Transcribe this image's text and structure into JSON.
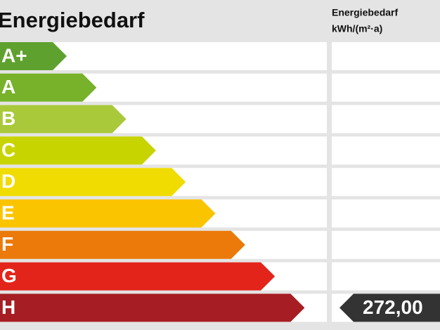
{
  "header": {
    "title": "Energiebedarf",
    "unit_title": "Energiebedarf",
    "unit": "kWh/(m²·a)"
  },
  "classes": [
    {
      "label": "A+",
      "color": "#5fa12f"
    },
    {
      "label": "A",
      "color": "#77b22a"
    },
    {
      "label": "B",
      "color": "#a9c93a"
    },
    {
      "label": "C",
      "color": "#c8d400"
    },
    {
      "label": "D",
      "color": "#f0dc00"
    },
    {
      "label": "E",
      "color": "#fbc400"
    },
    {
      "label": "F",
      "color": "#eb7a0a"
    },
    {
      "label": "G",
      "color": "#e3241b"
    },
    {
      "label": "H",
      "color": "#a61d23",
      "value": "272,00"
    }
  ]
}
